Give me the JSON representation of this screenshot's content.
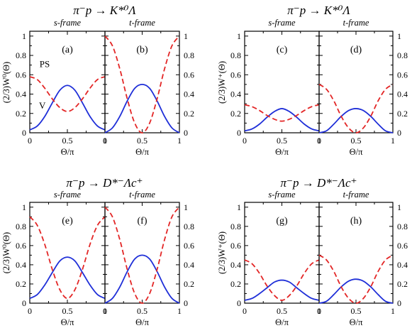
{
  "colors": {
    "V": "#1f2fd8",
    "PS": "#e32626",
    "axis": "#000000"
  },
  "chart_data": [
    {
      "type": "line",
      "title": "π⁻p → K*⁰Λ",
      "ylabel": "(2/3)W⁰(Θ)",
      "panels": [
        {
          "frame": "s-frame",
          "letter": "(a)",
          "xlabel": "Θ/π",
          "xlim": [
            0,
            1
          ],
          "ylim": [
            0,
            1.05
          ],
          "xticks": [
            "0",
            "0.5",
            "1"
          ],
          "yticks": [
            "0",
            "0.2",
            "0.4",
            "0.6",
            "0.8",
            "1"
          ],
          "series": [
            {
              "name": "V",
              "style": "solid",
              "x": [
                0,
                0.1,
                0.2,
                0.3,
                0.4,
                0.5,
                0.6,
                0.7,
                0.8,
                0.9,
                1
              ],
              "y": [
                0.03,
                0.07,
                0.17,
                0.31,
                0.44,
                0.49,
                0.44,
                0.31,
                0.17,
                0.07,
                0.03
              ]
            },
            {
              "name": "PS",
              "style": "dashed",
              "x": [
                0,
                0.1,
                0.2,
                0.3,
                0.4,
                0.5,
                0.6,
                0.7,
                0.8,
                0.9,
                1
              ],
              "y": [
                0.58,
                0.55,
                0.46,
                0.35,
                0.26,
                0.22,
                0.26,
                0.35,
                0.46,
                0.55,
                0.58
              ]
            }
          ]
        },
        {
          "frame": "t-frame",
          "letter": "(b)",
          "xlabel": "Θ/π",
          "xlim": [
            0,
            1
          ],
          "ylim": [
            0,
            1.05
          ],
          "xticks": [
            "0",
            "0.5",
            "1"
          ],
          "yticks": [
            "0",
            "0.2",
            "0.4",
            "0.6",
            "0.8",
            "1"
          ],
          "series": [
            {
              "name": "",
              "style": "solid",
              "x": [
                0,
                0.1,
                0.2,
                0.3,
                0.4,
                0.5,
                0.6,
                0.7,
                0.8,
                0.9,
                1
              ],
              "y": [
                0.0,
                0.05,
                0.17,
                0.33,
                0.46,
                0.5,
                0.46,
                0.33,
                0.17,
                0.05,
                0.0
              ]
            },
            {
              "name": "",
              "style": "dashed",
              "x": [
                0,
                0.1,
                0.2,
                0.3,
                0.4,
                0.5,
                0.6,
                0.7,
                0.8,
                0.9,
                1
              ],
              "y": [
                1.0,
                0.9,
                0.66,
                0.35,
                0.1,
                0.0,
                0.1,
                0.35,
                0.66,
                0.9,
                1.0
              ]
            }
          ]
        }
      ]
    },
    {
      "type": "line",
      "title": "π⁻p → K*⁰Λ",
      "ylabel": "(2/3)W⁺(Θ)",
      "panels": [
        {
          "frame": "s-frame",
          "letter": "(c)",
          "xlabel": "Θ/π",
          "xlim": [
            0,
            1
          ],
          "ylim": [
            0,
            1.05
          ],
          "xticks": [
            "0",
            "0.5",
            "1"
          ],
          "yticks": [
            "0",
            "0.2",
            "0.4",
            "0.6",
            "0.8",
            "1"
          ],
          "series": [
            {
              "name": "",
              "style": "solid",
              "x": [
                0,
                0.1,
                0.2,
                0.3,
                0.4,
                0.5,
                0.6,
                0.7,
                0.8,
                0.9,
                1
              ],
              "y": [
                0.02,
                0.04,
                0.09,
                0.16,
                0.22,
                0.25,
                0.22,
                0.16,
                0.09,
                0.04,
                0.02
              ]
            },
            {
              "name": "",
              "style": "dashed",
              "x": [
                0,
                0.1,
                0.2,
                0.3,
                0.4,
                0.5,
                0.6,
                0.7,
                0.8,
                0.9,
                1
              ],
              "y": [
                0.29,
                0.27,
                0.23,
                0.18,
                0.14,
                0.12,
                0.14,
                0.18,
                0.23,
                0.27,
                0.29
              ]
            }
          ]
        },
        {
          "frame": "t-frame",
          "letter": "(d)",
          "xlabel": "Θ/π",
          "xlim": [
            0,
            1
          ],
          "ylim": [
            0,
            1.05
          ],
          "xticks": [
            "0",
            "0.5",
            "1"
          ],
          "yticks": [
            "0",
            "0.2",
            "0.4",
            "0.6",
            "0.8",
            "1"
          ],
          "series": [
            {
              "name": "",
              "style": "solid",
              "x": [
                0,
                0.1,
                0.2,
                0.3,
                0.4,
                0.5,
                0.6,
                0.7,
                0.8,
                0.9,
                1
              ],
              "y": [
                0.0,
                0.02,
                0.09,
                0.17,
                0.23,
                0.25,
                0.23,
                0.17,
                0.09,
                0.02,
                0.0
              ]
            },
            {
              "name": "",
              "style": "dashed",
              "x": [
                0,
                0.1,
                0.2,
                0.3,
                0.4,
                0.5,
                0.6,
                0.7,
                0.8,
                0.9,
                1
              ],
              "y": [
                0.5,
                0.45,
                0.33,
                0.17,
                0.05,
                0.0,
                0.05,
                0.17,
                0.33,
                0.45,
                0.5
              ]
            }
          ]
        }
      ]
    },
    {
      "type": "line",
      "title": "π⁻p → D*⁻Λc⁺",
      "ylabel": "(2/3)W⁰(Θ)",
      "panels": [
        {
          "frame": "s-frame",
          "letter": "(e)",
          "xlabel": "Θ/π",
          "xlim": [
            0,
            1
          ],
          "ylim": [
            0,
            1.05
          ],
          "xticks": [
            "0",
            "0.5",
            "1"
          ],
          "yticks": [
            "0",
            "0.2",
            "0.4",
            "0.6",
            "0.8",
            "1"
          ],
          "series": [
            {
              "name": "",
              "style": "solid",
              "x": [
                0,
                0.1,
                0.2,
                0.3,
                0.4,
                0.5,
                0.6,
                0.7,
                0.8,
                0.9,
                1
              ],
              "y": [
                0.05,
                0.09,
                0.19,
                0.32,
                0.44,
                0.48,
                0.44,
                0.32,
                0.19,
                0.09,
                0.05
              ]
            },
            {
              "name": "",
              "style": "dashed",
              "x": [
                0,
                0.1,
                0.2,
                0.3,
                0.4,
                0.5,
                0.6,
                0.7,
                0.8,
                0.9,
                1
              ],
              "y": [
                0.9,
                0.81,
                0.61,
                0.35,
                0.14,
                0.05,
                0.14,
                0.35,
                0.61,
                0.81,
                0.9
              ]
            }
          ]
        },
        {
          "frame": "t-frame",
          "letter": "(f)",
          "xlabel": "Θ/π",
          "xlim": [
            0,
            1
          ],
          "ylim": [
            0,
            1.05
          ],
          "xticks": [
            "0",
            "0.5",
            "1"
          ],
          "yticks": [
            "0",
            "0.2",
            "0.4",
            "0.6",
            "0.8",
            "1"
          ],
          "series": [
            {
              "name": "",
              "style": "solid",
              "x": [
                0,
                0.1,
                0.2,
                0.3,
                0.4,
                0.5,
                0.6,
                0.7,
                0.8,
                0.9,
                1
              ],
              "y": [
                0.0,
                0.05,
                0.17,
                0.33,
                0.46,
                0.5,
                0.46,
                0.33,
                0.17,
                0.05,
                0.0
              ]
            },
            {
              "name": "",
              "style": "dashed",
              "x": [
                0,
                0.1,
                0.2,
                0.3,
                0.4,
                0.5,
                0.6,
                0.7,
                0.8,
                0.9,
                1
              ],
              "y": [
                1.0,
                0.9,
                0.66,
                0.35,
                0.1,
                0.0,
                0.1,
                0.35,
                0.66,
                0.9,
                1.0
              ]
            }
          ]
        }
      ]
    },
    {
      "type": "line",
      "title": "π⁻p → D*⁻Λc⁺",
      "ylabel": "(2/3)W⁺(Θ)",
      "panels": [
        {
          "frame": "s-frame",
          "letter": "(g)",
          "xlabel": "Θ/π",
          "xlim": [
            0,
            1
          ],
          "ylim": [
            0,
            1.05
          ],
          "xticks": [
            "0",
            "0.5",
            "1"
          ],
          "yticks": [
            "0",
            "0.2",
            "0.4",
            "0.6",
            "0.8",
            "1"
          ],
          "series": [
            {
              "name": "",
              "style": "solid",
              "x": [
                0,
                0.1,
                0.2,
                0.3,
                0.4,
                0.5,
                0.6,
                0.7,
                0.8,
                0.9,
                1
              ],
              "y": [
                0.03,
                0.05,
                0.1,
                0.16,
                0.22,
                0.24,
                0.22,
                0.16,
                0.1,
                0.05,
                0.03
              ]
            },
            {
              "name": "",
              "style": "dashed",
              "x": [
                0,
                0.1,
                0.2,
                0.3,
                0.4,
                0.5,
                0.6,
                0.7,
                0.8,
                0.9,
                1
              ],
              "y": [
                0.45,
                0.41,
                0.31,
                0.18,
                0.08,
                0.03,
                0.08,
                0.18,
                0.31,
                0.41,
                0.45
              ]
            }
          ]
        },
        {
          "frame": "t-frame",
          "letter": "(h)",
          "xlabel": "Θ/π",
          "xlim": [
            0,
            1
          ],
          "ylim": [
            0,
            1.05
          ],
          "xticks": [
            "0",
            "0.5",
            "1"
          ],
          "yticks": [
            "0",
            "0.2",
            "0.4",
            "0.6",
            "0.8",
            "1"
          ],
          "series": [
            {
              "name": "",
              "style": "solid",
              "x": [
                0,
                0.1,
                0.2,
                0.3,
                0.4,
                0.5,
                0.6,
                0.7,
                0.8,
                0.9,
                1
              ],
              "y": [
                0.0,
                0.02,
                0.09,
                0.17,
                0.23,
                0.25,
                0.23,
                0.17,
                0.09,
                0.02,
                0.0
              ]
            },
            {
              "name": "",
              "style": "dashed",
              "x": [
                0,
                0.1,
                0.2,
                0.3,
                0.4,
                0.5,
                0.6,
                0.7,
                0.8,
                0.9,
                1
              ],
              "y": [
                0.5,
                0.45,
                0.33,
                0.17,
                0.05,
                0.0,
                0.05,
                0.17,
                0.33,
                0.45,
                0.5
              ]
            }
          ]
        }
      ]
    }
  ]
}
